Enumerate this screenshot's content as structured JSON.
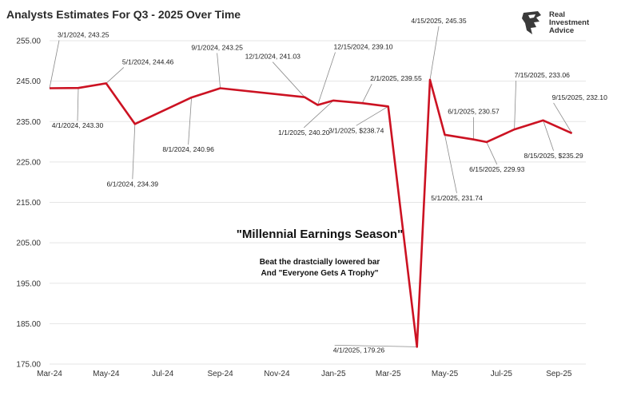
{
  "title": "Analysts Estimates For Q3 - 2025 Over Time",
  "logo": {
    "line1": "Real",
    "line2": "Investment",
    "line3": "Advice"
  },
  "headline": "\"Millennial Earnings Season\"",
  "subtext": {
    "line1": "Beat the drastcially lowered bar",
    "line2": "And \"Everyone Gets A Trophy\""
  },
  "colors": {
    "series": "#cc1222",
    "grid": "#e5e5e5",
    "text": "#333333"
  },
  "chart_data": {
    "type": "line",
    "title": "Analysts Estimates For Q3 - 2025 Over Time",
    "xlabel": "",
    "ylabel": "",
    "ylim": [
      175,
      255
    ],
    "xlim": [
      "2024-03-01",
      "2025-09-30"
    ],
    "grid": "horizontal",
    "y_ticks": [
      "175.00",
      "185.00",
      "195.00",
      "205.00",
      "215.00",
      "225.00",
      "235.00",
      "245.00",
      "255.00"
    ],
    "x_ticks": [
      {
        "date": "2024-03-01",
        "label": "Mar-24"
      },
      {
        "date": "2024-05-01",
        "label": "May-24"
      },
      {
        "date": "2024-07-01",
        "label": "Jul-24"
      },
      {
        "date": "2024-09-01",
        "label": "Sep-24"
      },
      {
        "date": "2024-11-01",
        "label": "Nov-24"
      },
      {
        "date": "2025-01-01",
        "label": "Jan-25"
      },
      {
        "date": "2025-03-01",
        "label": "Mar-25"
      },
      {
        "date": "2025-05-01",
        "label": "May-25"
      },
      {
        "date": "2025-07-01",
        "label": "Jul-25"
      },
      {
        "date": "2025-09-01",
        "label": "Sep-25"
      }
    ],
    "series": [
      {
        "points": [
          {
            "date": "2024-03-01",
            "value": 243.25,
            "label": "3/1/2024,  243.25"
          },
          {
            "date": "2024-04-01",
            "value": 243.3,
            "label": "4/1/2024,  243.30"
          },
          {
            "date": "2024-05-01",
            "value": 244.46,
            "label": "5/1/2024,  244.46"
          },
          {
            "date": "2024-06-01",
            "value": 234.39,
            "label": "6/1/2024, 234.39"
          },
          {
            "date": "2024-08-01",
            "value": 240.96,
            "label": "8/1/2024,  240.96"
          },
          {
            "date": "2024-09-01",
            "value": 243.25,
            "label": "9/1/2024,  243.25"
          },
          {
            "date": "2024-12-01",
            "value": 241.03,
            "label": "12/1/2024,  241.03"
          },
          {
            "date": "2024-12-15",
            "value": 239.1,
            "label": "12/15/2024,  239.10"
          },
          {
            "date": "2025-01-01",
            "value": 240.2,
            "label": "1/1/2025,  240.20"
          },
          {
            "date": "2025-02-01",
            "value": 239.55,
            "label": "2/1/2025,  239.55"
          },
          {
            "date": "2025-03-01",
            "value": 238.74,
            "label": "3/1/2025, $238.74"
          },
          {
            "date": "2025-04-01",
            "value": 179.26,
            "label": "4/1/2025,  179.26"
          },
          {
            "date": "2025-04-15",
            "value": 245.35,
            "label": "4/15/2025,  245.35"
          },
          {
            "date": "2025-05-01",
            "value": 231.74,
            "label": "5/1/2025,  231.74"
          },
          {
            "date": "2025-06-01",
            "value": 230.57,
            "label": "6/1/2025,  230.57"
          },
          {
            "date": "2025-06-15",
            "value": 229.93,
            "label": "6/15/2025,  229.93"
          },
          {
            "date": "2025-07-15",
            "value": 233.06,
            "label": "7/15/2025,  233.06"
          },
          {
            "date": "2025-08-15",
            "value": 235.29,
            "label": "8/15/2025, $235.29"
          },
          {
            "date": "2025-09-15",
            "value": 232.1,
            "label": "9/15/2025,  232.10"
          }
        ]
      }
    ]
  }
}
